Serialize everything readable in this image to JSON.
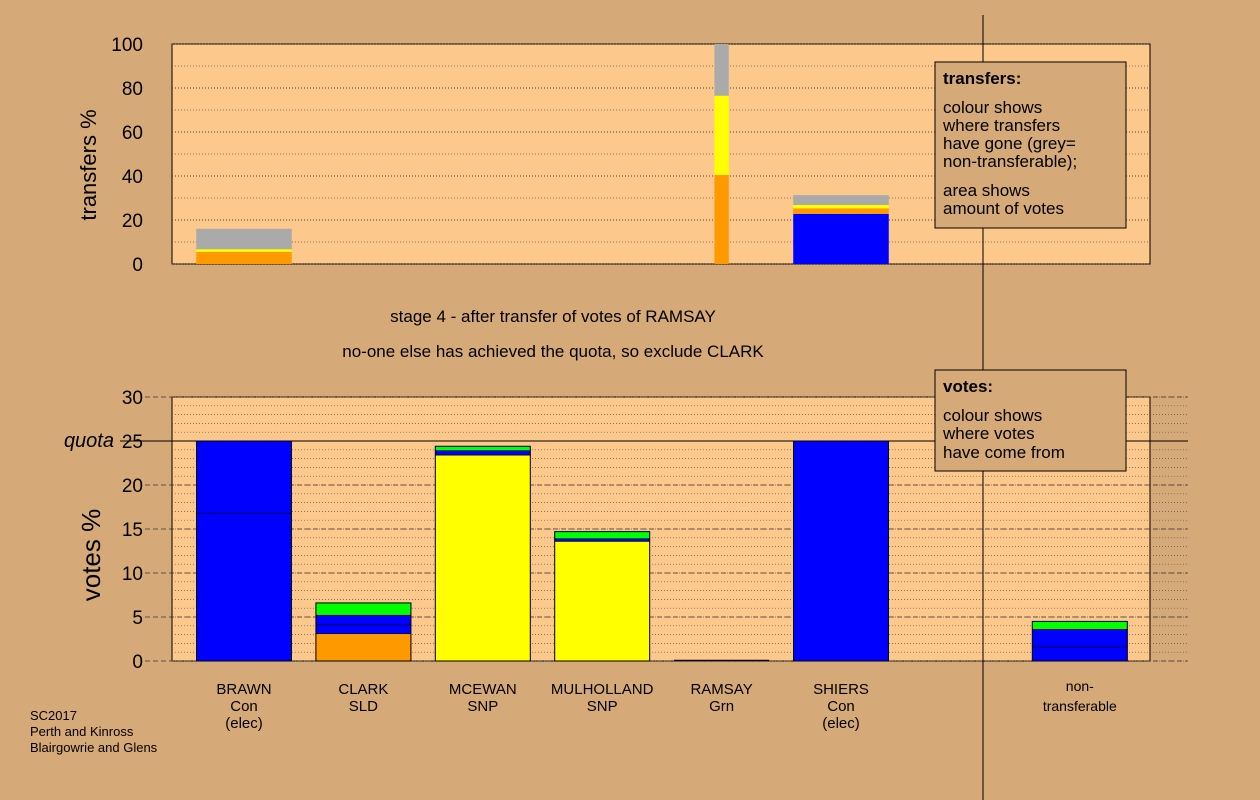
{
  "colors": {
    "page_bg": "#d6aa78",
    "plot_bg": "#fdc88c",
    "con": "#0000ff",
    "snp": "#ffff00",
    "sld": "#ff9900",
    "grn": "#00ff00",
    "nontransferable": "#aaaaaa",
    "box_bg": "#d6aa78"
  },
  "stage_text": {
    "line1": "stage 4 - after transfer of votes of RAMSAY",
    "line2": "no-one else has achieved the quota, so exclude CLARK"
  },
  "footer": {
    "line1": "SC2017",
    "line2": "Perth and Kinross",
    "line3": "Blairgowrie and Glens"
  },
  "candidates": [
    {
      "name": "BRAWN",
      "party": "Con",
      "status": "(elec)"
    },
    {
      "name": "CLARK",
      "party": "SLD",
      "status": ""
    },
    {
      "name": "MCEWAN",
      "party": "SNP",
      "status": ""
    },
    {
      "name": "MULHOLLAND",
      "party": "SNP",
      "status": ""
    },
    {
      "name": "RAMSAY",
      "party": "Grn",
      "status": ""
    },
    {
      "name": "SHIERS",
      "party": "Con",
      "status": "(elec)"
    }
  ],
  "nontransferable_label": {
    "line1": "non-",
    "line2": "transferable"
  },
  "transfers_box": {
    "title": "transfers:",
    "lines1": [
      "colour shows",
      "where transfers",
      "have gone (grey=",
      "non-transferable);"
    ],
    "lines2": [
      "area shows",
      "amount of votes"
    ]
  },
  "votes_box": {
    "title": "votes:",
    "lines": [
      "colour shows",
      "where votes",
      "have come from"
    ]
  },
  "chart_data": [
    {
      "type": "bar",
      "stacked": true,
      "ylabel": "transfers %",
      "ylim": [
        0,
        100
      ],
      "yticks": [
        0,
        20,
        40,
        60,
        80,
        100
      ],
      "bars": [
        {
          "candidate": "BRAWN",
          "slot": 0,
          "width": 0.8,
          "segments": [
            {
              "party": "sld",
              "value": 5.5
            },
            {
              "party": "snp",
              "value": 1.2
            },
            {
              "party": "nontransferable",
              "value": 9.3
            }
          ]
        },
        {
          "candidate": "RAMSAY",
          "slot": 4,
          "width": 0.12,
          "segments": [
            {
              "party": "sld",
              "value": 40.5
            },
            {
              "party": "snp",
              "value": 36
            },
            {
              "party": "nontransferable",
              "value": 23.5
            }
          ]
        },
        {
          "candidate": "SHIERS",
          "slot": 5,
          "width": 0.8,
          "segments": [
            {
              "party": "con",
              "value": 22.8
            },
            {
              "party": "sld",
              "value": 2.5
            },
            {
              "party": "snp",
              "value": 1.5
            },
            {
              "party": "nontransferable",
              "value": 4.5
            }
          ]
        }
      ]
    },
    {
      "type": "bar",
      "stacked": true,
      "ylabel": "votes %",
      "ylim": [
        0,
        30
      ],
      "yticks": [
        0,
        5,
        10,
        15,
        20,
        25,
        30
      ],
      "quota": 25,
      "quota_label": "quota",
      "bars": [
        {
          "candidate": "BRAWN",
          "slot": 0,
          "segments": [
            {
              "party": "con",
              "value": 16.8
            },
            {
              "party": "con",
              "value": 8.2
            }
          ]
        },
        {
          "candidate": "CLARK",
          "slot": 1,
          "segments": [
            {
              "party": "sld",
              "value": 3.1
            },
            {
              "party": "con",
              "value": 1.0
            },
            {
              "party": "con",
              "value": 1.1
            },
            {
              "party": "grn",
              "value": 1.4
            }
          ]
        },
        {
          "candidate": "MCEWAN",
          "slot": 2,
          "segments": [
            {
              "party": "snp",
              "value": 23.4
            },
            {
              "party": "con",
              "value": 0.5
            },
            {
              "party": "grn",
              "value": 0.5
            }
          ]
        },
        {
          "candidate": "MULHOLLAND",
          "slot": 3,
          "segments": [
            {
              "party": "snp",
              "value": 13.6
            },
            {
              "party": "con",
              "value": 0.3
            },
            {
              "party": "grn",
              "value": 0.8
            }
          ]
        },
        {
          "candidate": "RAMSAY",
          "slot": 4,
          "segments": []
        },
        {
          "candidate": "SHIERS",
          "slot": 5,
          "segments": [
            {
              "party": "con",
              "value": 25
            }
          ]
        },
        {
          "candidate": "non-transferable",
          "slot": 7,
          "segments": [
            {
              "party": "con",
              "value": 1.6
            },
            {
              "party": "con",
              "value": 2.0
            },
            {
              "party": "grn",
              "value": 0.9
            }
          ]
        }
      ]
    }
  ]
}
